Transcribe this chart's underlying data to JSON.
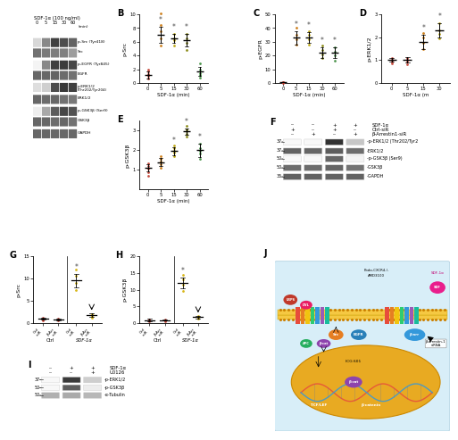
{
  "panel_A": {
    "header": "SDF-1α (100 ng/ml)",
    "timepoints": [
      "0",
      "5",
      "15",
      "30",
      "60"
    ],
    "time_label": "(min)",
    "bands": [
      {
        "label": "p-Src (Tyr418)",
        "intensities": [
          0.18,
          0.55,
          0.88,
          0.82,
          0.72
        ]
      },
      {
        "label": "Src",
        "intensities": [
          0.65,
          0.62,
          0.6,
          0.58,
          0.45
        ]
      },
      {
        "label": "p-EGFR (Tyr845)",
        "intensities": [
          0.05,
          0.55,
          0.88,
          0.9,
          0.85
        ]
      },
      {
        "label": "EGFR",
        "intensities": [
          0.7,
          0.7,
          0.72,
          0.68,
          0.65
        ]
      },
      {
        "label": "p-ERK1/2",
        "intensities": [
          0.15,
          0.22,
          0.82,
          0.92,
          0.88
        ]
      },
      {
        "label": "(Thr202/Tyr204)",
        "intensities": [
          -1,
          -1,
          -1,
          -1,
          -1
        ]
      },
      {
        "label": "ERK1/2",
        "intensities": [
          0.7,
          0.68,
          0.7,
          0.65,
          0.62
        ]
      },
      {
        "label": "p-GSK3β (Ser9)",
        "intensities": [
          0.08,
          0.4,
          0.75,
          0.85,
          0.8
        ]
      },
      {
        "label": "GSK3β",
        "intensities": [
          0.7,
          0.7,
          0.68,
          0.7,
          0.65
        ]
      },
      {
        "label": "GAPDH",
        "intensities": [
          0.7,
          0.7,
          0.7,
          0.7,
          0.7
        ]
      }
    ]
  },
  "panel_B": {
    "label": "B",
    "ylabel": "p-Src",
    "xlabel": "SDF-1α (min)",
    "xticks": [
      0,
      5,
      15,
      30,
      60
    ],
    "ylim": [
      0,
      10
    ],
    "yticks": [
      0,
      2,
      4,
      6,
      8,
      10
    ],
    "means": [
      1.2,
      7.0,
      6.5,
      6.2,
      1.7
    ],
    "errors": [
      0.5,
      1.2,
      0.7,
      0.9,
      0.6
    ],
    "scatter_points": [
      [
        0.7,
        1.0,
        1.3,
        1.7,
        2.0
      ],
      [
        5.5,
        6.5,
        7.5,
        8.5,
        10.2
      ],
      [
        5.5,
        6.2,
        6.5,
        7.2
      ],
      [
        4.8,
        5.8,
        6.5,
        7.2
      ],
      [
        0.8,
        1.2,
        1.5,
        2.0,
        2.8
      ]
    ],
    "colors": [
      "#c0392b",
      "#c87000",
      "#b8a000",
      "#808000",
      "#3a8a3a"
    ],
    "star_indices": [
      1,
      2,
      3
    ]
  },
  "panel_C": {
    "label": "C",
    "ylabel": "p-EGFR",
    "xlabel": "SDF-1α (min)",
    "xticks": [
      0,
      5,
      15,
      30,
      60
    ],
    "ylim": [
      0,
      50
    ],
    "yticks": [
      0,
      10,
      20,
      30,
      40,
      50
    ],
    "means": [
      0.5,
      33.0,
      33.0,
      22.0,
      22.0
    ],
    "errors": [
      0.3,
      5.0,
      4.0,
      4.0,
      4.0
    ],
    "scatter_points": [
      [
        0.2,
        0.5,
        0.9
      ],
      [
        28.0,
        32.0,
        35.0,
        40.0
      ],
      [
        28.0,
        32.0,
        35.0,
        38.0
      ],
      [
        18.0,
        21.0,
        24.0,
        27.0
      ],
      [
        16.0,
        20.0,
        23.0,
        26.0
      ]
    ],
    "colors": [
      "#c0392b",
      "#c87000",
      "#b8a000",
      "#808000",
      "#3a8a3a"
    ],
    "star_indices": [
      1,
      2,
      3,
      4
    ]
  },
  "panel_D": {
    "label": "D",
    "ylabel": "p-ERK1/2",
    "xlabel": "SDF-1α (m",
    "xticks": [
      0,
      5,
      15,
      30
    ],
    "ylim": [
      0,
      3
    ],
    "yticks": [
      0,
      1,
      2,
      3
    ],
    "means": [
      1.0,
      1.0,
      1.8,
      2.3
    ],
    "errors": [
      0.08,
      0.12,
      0.3,
      0.3
    ],
    "scatter_points": [
      [
        0.85,
        0.95,
        1.02,
        1.1
      ],
      [
        0.82,
        0.95,
        1.02,
        1.1
      ],
      [
        1.5,
        1.75,
        2.0,
        2.2
      ],
      [
        1.95,
        2.15,
        2.3,
        2.6
      ]
    ],
    "colors": [
      "#c0392b",
      "#c0392b",
      "#c87000",
      "#b8a000"
    ],
    "star_indices": [
      2,
      3
    ]
  },
  "panel_E": {
    "label": "E",
    "ylabel": "p-GSK3β",
    "xlabel": "SDF-1α (min)",
    "xticks": [
      0,
      5,
      15,
      30,
      60
    ],
    "ylim": [
      0,
      3.5
    ],
    "yticks": [
      1,
      2,
      3
    ],
    "means": [
      1.1,
      1.4,
      1.95,
      2.95,
      2.0
    ],
    "errors": [
      0.18,
      0.2,
      0.2,
      0.15,
      0.35
    ],
    "scatter_points": [
      [
        0.7,
        0.9,
        1.05,
        1.2,
        1.35
      ],
      [
        1.1,
        1.3,
        1.42,
        1.55,
        1.7
      ],
      [
        1.7,
        1.88,
        1.98,
        2.1,
        2.25
      ],
      [
        2.7,
        2.85,
        2.97,
        3.05,
        3.25
      ],
      [
        1.55,
        1.82,
        1.98,
        2.1,
        2.35
      ]
    ],
    "colors": [
      "#c0392b",
      "#c87000",
      "#b8a000",
      "#808000",
      "#3a8a3a"
    ],
    "star_indices": [
      2,
      3,
      4
    ]
  },
  "panel_F": {
    "label": "F",
    "header_rows": [
      {
        "signs": [
          "--",
          "--",
          "+",
          "+"
        ],
        "label": "SDF-1α"
      },
      {
        "signs": [
          "+",
          "--",
          "+",
          "--"
        ],
        "label": "Ctrl-siR"
      },
      {
        "signs": [
          "--",
          "+",
          "--",
          "+"
        ],
        "label": "β-Arrestin1-siR"
      }
    ],
    "bands": [
      {
        "marker": "37-",
        "label": "-p-ERK1/2 (Thr202/Tyr2",
        "intensities": [
          0.03,
          0.03,
          0.92,
          0.25
        ]
      },
      {
        "marker": "37-",
        "label": "-ERK1/2",
        "intensities": [
          0.7,
          0.68,
          0.72,
          0.65
        ]
      },
      {
        "marker": "50-",
        "label": "-p-GSK3β (Ser9)",
        "intensities": [
          0.03,
          0.03,
          0.68,
          0.05
        ]
      },
      {
        "marker": "50-",
        "label": "-GSK3β",
        "intensities": [
          0.65,
          0.65,
          0.68,
          0.62
        ]
      },
      {
        "marker": "35-",
        "label": "-GAPDH",
        "intensities": [
          0.7,
          0.7,
          0.7,
          0.7
        ]
      }
    ]
  },
  "panel_G": {
    "label": "G",
    "ylabel": "p-Src",
    "x_positions": [
      0,
      0.7,
      1.5,
      2.2
    ],
    "groups": [
      "Ctrl-siR",
      "β-Arr-siR",
      "Ctrl-siR",
      "β-Arr-siR"
    ],
    "group_labels": [
      "Ctrl",
      "SDF-1α"
    ],
    "ylim": [
      0,
      15
    ],
    "yticks": [
      0,
      5,
      10,
      15
    ],
    "means": [
      1.0,
      0.9,
      9.5,
      1.8
    ],
    "errors": [
      0.2,
      0.15,
      1.5,
      0.4
    ],
    "scatter_points": [
      [
        0.7,
        0.95,
        1.2
      ],
      [
        0.65,
        0.88,
        1.05
      ],
      [
        7.5,
        9.0,
        10.5,
        12.0
      ],
      [
        1.3,
        1.7,
        2.1
      ]
    ],
    "colors": [
      "#c0392b",
      "#c0392b",
      "#d4b000",
      "#d4b000"
    ],
    "star_index": 2,
    "arrow_index": 3
  },
  "panel_H": {
    "label": "H",
    "ylabel": "p-GSK3β",
    "x_positions": [
      0,
      0.7,
      1.5,
      2.2
    ],
    "groups": [
      "Ctrl-siR",
      "β-Arr-siR",
      "Ctrl-siR",
      "β-Arr-siR"
    ],
    "group_labels": [
      "Ctrl",
      "SDF-1α"
    ],
    "ylim": [
      0,
      20
    ],
    "yticks": [
      0,
      5,
      10,
      15,
      20
    ],
    "means": [
      1.0,
      1.0,
      12.0,
      1.8
    ],
    "errors": [
      0.3,
      0.2,
      1.5,
      0.4
    ],
    "scatter_points": [
      [
        0.65,
        0.92,
        1.2
      ],
      [
        0.7,
        0.95,
        1.2
      ],
      [
        9.5,
        11.5,
        13.0,
        14.5
      ],
      [
        1.3,
        1.7,
        2.1
      ]
    ],
    "colors": [
      "#c0392b",
      "#c0392b",
      "#d4b000",
      "#d4b000"
    ],
    "star_index": 2,
    "arrow_index": 3
  },
  "panel_I": {
    "label": "I",
    "header_rows": [
      {
        "signs": [
          "--",
          "+",
          "+"
        ],
        "label": "SDF-1α"
      },
      {
        "signs": [
          "--",
          "--",
          "+"
        ],
        "label": "U0126"
      }
    ],
    "bands": [
      {
        "marker": "37-",
        "label": "-p-ERK1/2",
        "intensities": [
          0.03,
          0.88,
          0.22
        ]
      },
      {
        "marker": "50-",
        "label": "-p-GSK3β",
        "intensities": [
          0.03,
          0.72,
          0.08
        ]
      },
      {
        "marker": "50-",
        "label": "-α-Tubulin",
        "intensities": [
          0.35,
          0.38,
          0.32
        ]
      }
    ]
  },
  "panel_J": {
    "label": "J"
  },
  "bg_color": "#ffffff"
}
